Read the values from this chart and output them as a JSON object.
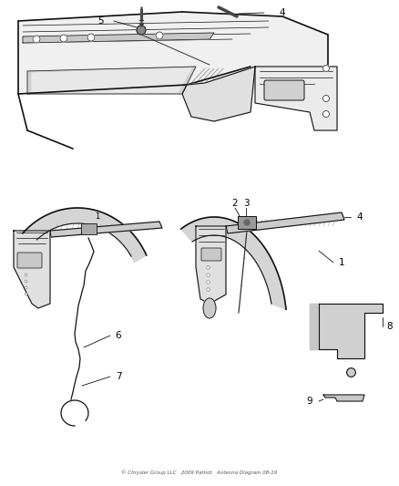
{
  "background_color": "#ffffff",
  "line_color": "#222222",
  "fig_width": 4.38,
  "fig_height": 5.33,
  "dpi": 100,
  "footer": "© Chrysler Group LLC   2009 Patriot   Antenna Diagram 08-19",
  "gray_fill": "#d8d8d8",
  "light_gray": "#eeeeee",
  "mid_gray": "#bbbbbb",
  "dark_line": "#111111"
}
